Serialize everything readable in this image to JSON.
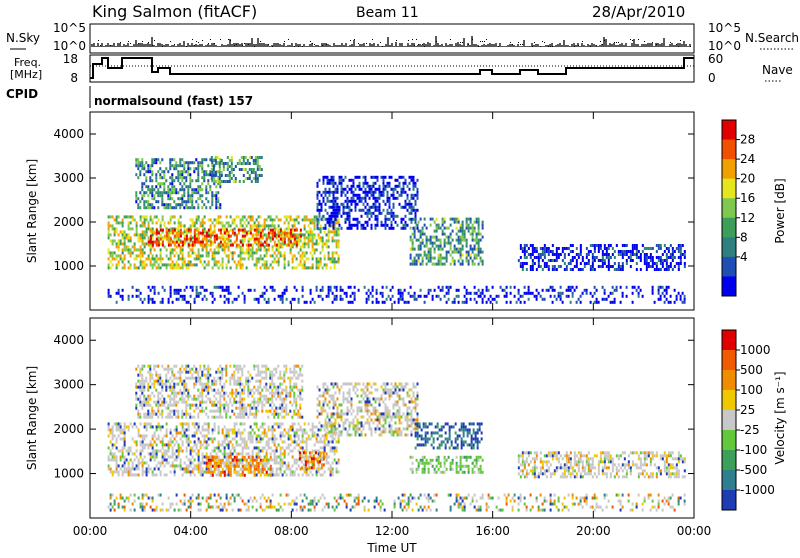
{
  "header": {
    "station": "King Salmon (fitACF)",
    "beam": "Beam 11",
    "date": "28/Apr/2010"
  },
  "top_panels": {
    "nsky_label": "N.Sky",
    "nsky_ticks": [
      "10^5",
      "10^0"
    ],
    "nsearch_label": "N.Search",
    "nsearch_ticks": [
      "10^5",
      "10^0"
    ],
    "freq_label_1": "Freq.",
    "freq_label_2": "[MHz]",
    "freq_ticks": [
      "18",
      "8"
    ],
    "nave_label": "Nave",
    "nave_ticks": [
      "60",
      "0"
    ],
    "cpid_label": "CPID",
    "cpid_text": "normalsound (fast) 157"
  },
  "chart_data": [
    {
      "type": "heatmap",
      "name": "power",
      "ylabel": "Slant Range [km]",
      "ylim": [
        0,
        4500
      ],
      "y_ticks": [
        "1000",
        "2000",
        "3000",
        "4000"
      ],
      "x_ticks": [
        "00:00",
        "04:00",
        "08:00",
        "12:00",
        "16:00",
        "20:00",
        "00:00"
      ],
      "xlim_hours": [
        0,
        24
      ],
      "colorbar": {
        "label": "Power [dB]",
        "ticks": [
          "28",
          "24",
          "20",
          "16",
          "12",
          "8",
          "4"
        ],
        "colors": [
          "#0000ee",
          "#1f4fb4",
          "#2f7f7f",
          "#3d9e5a",
          "#7fc84f",
          "#e6e61e",
          "#f0a000",
          "#f05000",
          "#e00000"
        ]
      },
      "echo_regions": [
        {
          "t": [
            0.7,
            9.9
          ],
          "r": [
            950,
            2150
          ],
          "level": 0.55
        },
        {
          "t": [
            2.3,
            8.4
          ],
          "r": [
            1450,
            1850
          ],
          "level": 0.85
        },
        {
          "t": [
            1.8,
            5.2
          ],
          "r": [
            2300,
            3450
          ],
          "level": 0.3
        },
        {
          "t": [
            4.8,
            6.8
          ],
          "r": [
            2900,
            3500
          ],
          "level": 0.35
        },
        {
          "t": [
            9.0,
            13.0
          ],
          "r": [
            1850,
            3050
          ],
          "level": 0.08
        },
        {
          "t": [
            12.7,
            15.6
          ],
          "r": [
            1050,
            2100
          ],
          "level": 0.35
        },
        {
          "t": [
            17.0,
            23.6
          ],
          "r": [
            900,
            1500
          ],
          "level": 0.06
        },
        {
          "t": [
            0.7,
            23.6
          ],
          "r": [
            150,
            550
          ],
          "level": 0.05
        }
      ]
    },
    {
      "type": "heatmap",
      "name": "velocity",
      "ylabel": "Slant Range [km]",
      "ylim": [
        0,
        4500
      ],
      "y_ticks": [
        "1000",
        "2000",
        "3000",
        "4000"
      ],
      "x_ticks": [
        "00:00",
        "04:00",
        "08:00",
        "12:00",
        "16:00",
        "20:00",
        "00:00"
      ],
      "xlabel": "Time UT",
      "xlim_hours": [
        0,
        24
      ],
      "colorbar": {
        "label": "Velocity [m s⁻¹]",
        "ticks": [
          "1000",
          "500",
          "100",
          "25",
          "-25",
          "-100",
          "-500",
          "-1000"
        ],
        "colors": [
          "#1e3cb4",
          "#2f7f8f",
          "#3ca05a",
          "#64c83c",
          "#c8c8c8",
          "#f0c800",
          "#f08c00",
          "#f05a00",
          "#e00000"
        ]
      },
      "echo_regions": [
        {
          "t": [
            0.7,
            9.9
          ],
          "r": [
            950,
            2150
          ],
          "cls": "gray"
        },
        {
          "t": [
            4.6,
            7.2
          ],
          "r": [
            950,
            1400
          ],
          "cls": "orange"
        },
        {
          "t": [
            8.3,
            9.3
          ],
          "r": [
            1100,
            1500
          ],
          "cls": "orange"
        },
        {
          "t": [
            1.8,
            8.4
          ],
          "r": [
            2300,
            3450
          ],
          "cls": "gray"
        },
        {
          "t": [
            9.0,
            13.0
          ],
          "r": [
            1850,
            3050
          ],
          "cls": "gray"
        },
        {
          "t": [
            12.9,
            15.6
          ],
          "r": [
            1550,
            2150
          ],
          "cls": "blue"
        },
        {
          "t": [
            12.7,
            15.6
          ],
          "r": [
            1050,
            1400
          ],
          "cls": "green"
        },
        {
          "t": [
            17.0,
            23.6
          ],
          "r": [
            900,
            1500
          ],
          "cls": "gray"
        },
        {
          "t": [
            0.7,
            23.6
          ],
          "r": [
            150,
            550
          ],
          "cls": "mixed"
        }
      ]
    }
  ]
}
